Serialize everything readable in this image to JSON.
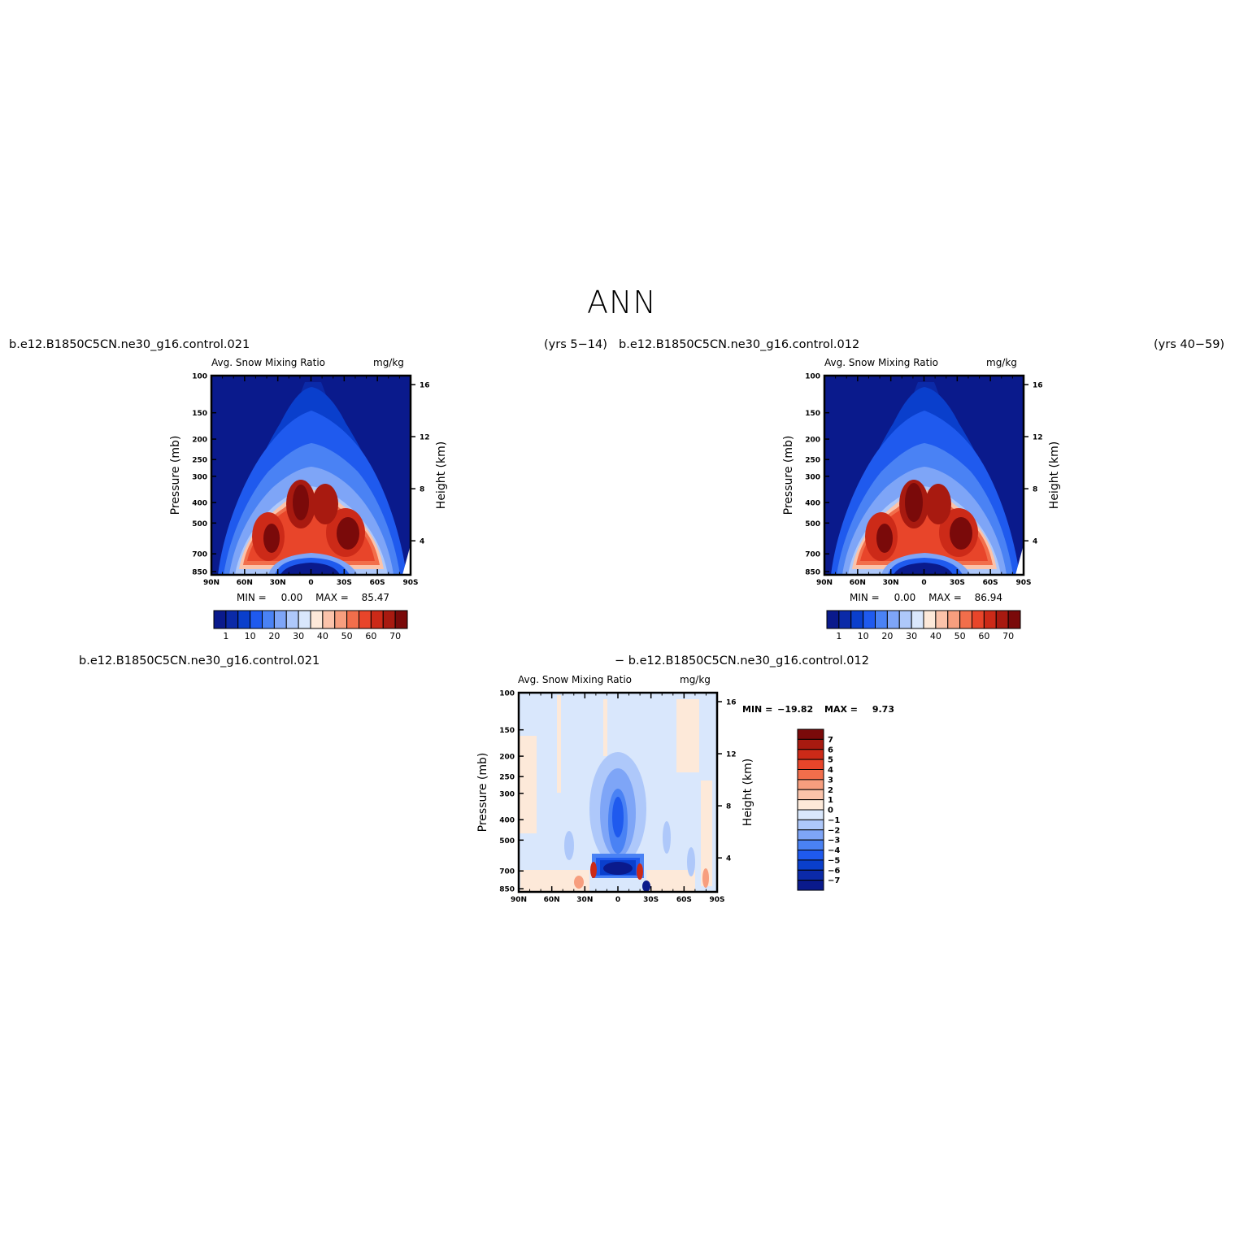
{
  "figure_title": "ANN",
  "panels": [
    {
      "id": "top-left",
      "case_label": "b.e12.B1850C5CN.ne30_g16.control.021",
      "years_label": "(yrs 5−14)",
      "variable_label": "Avg. Snow Mixing Ratio",
      "units_label": "mg/kg",
      "min_label": "MIN =",
      "min_value": "0.00",
      "max_label": "MAX =",
      "max_value": "85.47"
    },
    {
      "id": "top-right",
      "case_label": "b.e12.B1850C5CN.ne30_g16.control.012",
      "years_label": "(yrs 40−59)",
      "variable_label": "Avg. Snow Mixing Ratio",
      "units_label": "mg/kg",
      "min_label": "MIN =",
      "min_value": "0.00",
      "max_label": "MAX =",
      "max_value": "86.94"
    },
    {
      "id": "difference",
      "case_label": "b.e12.B1850C5CN.ne30_g16.control.021",
      "minus_label": "− b.e12.B1850C5CN.ne30_g16.control.012",
      "variable_label": "Avg. Snow Mixing Ratio",
      "units_label": "mg/kg",
      "min_label": "MIN =",
      "min_value": "−19.82",
      "max_label": "MAX =",
      "max_value": "9.73"
    }
  ],
  "axes": {
    "ylabel_left": "Pressure (mb)",
    "ylabel_right": "Height (km)",
    "pressure_ticks": [
      "100",
      "150",
      "200",
      "250",
      "300",
      "400",
      "500",
      "700",
      "850"
    ],
    "height_ticks": [
      "16",
      "12",
      "8",
      "4"
    ],
    "lat_ticks": [
      "90N",
      "60N",
      "30N",
      "0",
      "30S",
      "60S",
      "90S"
    ]
  },
  "colorbars": {
    "abs_labels": [
      "1",
      "10",
      "20",
      "30",
      "40",
      "50",
      "60",
      "70"
    ],
    "abs_colors": [
      "#0a1a8c",
      "#0b2aa8",
      "#0a3fcc",
      "#1f5aee",
      "#4a82f4",
      "#7ea5f7",
      "#aec8fa",
      "#d9e7fc",
      "#fde9d9",
      "#fbc3aa",
      "#f79e7e",
      "#f26e4b",
      "#e8452a",
      "#cc2a18",
      "#a81a10",
      "#7a0a0a"
    ],
    "diff_labels": [
      "7",
      "6",
      "5",
      "4",
      "3",
      "2",
      "1",
      "0",
      "−1",
      "−2",
      "−3",
      "−4",
      "−5",
      "−6",
      "−7"
    ],
    "diff_colors": [
      "#7a0a0a",
      "#a81a10",
      "#cc2a18",
      "#e8452a",
      "#f26e4b",
      "#f79e7e",
      "#fbc3aa",
      "#fde9d9",
      "#d9e7fc",
      "#aec8fa",
      "#7ea5f7",
      "#4a82f4",
      "#1f5aee",
      "#0a3fcc",
      "#0b2aa8",
      "#0a1a8c"
    ]
  },
  "chart_data": [
    {
      "type": "heatmap",
      "title": "Avg. Snow Mixing Ratio",
      "units": "mg/kg",
      "xlabel": "",
      "ylabel": "Pressure (mb)",
      "ylabel_right": "Height (km)",
      "x_range": [
        "90N",
        "90S"
      ],
      "y_range_mb": [
        850,
        100
      ],
      "y_scale": "log",
      "min": 0.0,
      "max": 85.47,
      "contour_levels": [
        1,
        5,
        10,
        15,
        20,
        25,
        30,
        35,
        40,
        45,
        50,
        55,
        60,
        65,
        70
      ],
      "features": [
        {
          "desc": "maximum lobe",
          "lat": 40,
          "pressure_mb": 620,
          "value": 75
        },
        {
          "desc": "maximum lobe",
          "lat": 5,
          "pressure_mb": 430,
          "value": 78
        },
        {
          "desc": "maximum lobe",
          "lat": -35,
          "pressure_mb": 620,
          "value": 78
        },
        {
          "desc": "low-value region",
          "lat": 0,
          "pressure_mb": 820,
          "value": 1
        }
      ]
    },
    {
      "type": "heatmap",
      "title": "Avg. Snow Mixing Ratio",
      "units": "mg/kg",
      "xlabel": "",
      "ylabel": "Pressure (mb)",
      "ylabel_right": "Height (km)",
      "x_range": [
        "90N",
        "90S"
      ],
      "y_range_mb": [
        850,
        100
      ],
      "y_scale": "log",
      "min": 0.0,
      "max": 86.94,
      "contour_levels": [
        1,
        5,
        10,
        15,
        20,
        25,
        30,
        35,
        40,
        45,
        50,
        55,
        60,
        65,
        70
      ],
      "features": [
        {
          "desc": "maximum lobe",
          "lat": 40,
          "pressure_mb": 620,
          "value": 76
        },
        {
          "desc": "maximum lobe",
          "lat": 5,
          "pressure_mb": 430,
          "value": 80
        },
        {
          "desc": "maximum lobe",
          "lat": -35,
          "pressure_mb": 620,
          "value": 80
        },
        {
          "desc": "low-value region",
          "lat": 0,
          "pressure_mb": 820,
          "value": 1
        }
      ]
    },
    {
      "type": "heatmap",
      "title": "Avg. Snow Mixing Ratio",
      "units": "mg/kg",
      "xlabel": "",
      "ylabel": "Pressure (mb)",
      "ylabel_right": "Height (km)",
      "x_range": [
        "90N",
        "90S"
      ],
      "y_range_mb": [
        850,
        100
      ],
      "y_scale": "log",
      "min": -19.82,
      "max": 9.73,
      "contour_levels": [
        -7,
        -6,
        -5,
        -4,
        -3,
        -2,
        -1,
        0,
        1,
        2,
        3,
        4,
        5,
        6,
        7
      ],
      "features": [
        {
          "desc": "negative minimum",
          "lat": 0,
          "pressure_mb": 720,
          "value": -8
        },
        {
          "desc": "negative column",
          "lat": 0,
          "pressure_mb": 380,
          "value": -4
        },
        {
          "desc": "positive blob",
          "lat": 8,
          "pressure_mb": 730,
          "value": 6
        },
        {
          "desc": "positive blob",
          "lat": -23,
          "pressure_mb": 760,
          "value": 5
        }
      ]
    }
  ]
}
